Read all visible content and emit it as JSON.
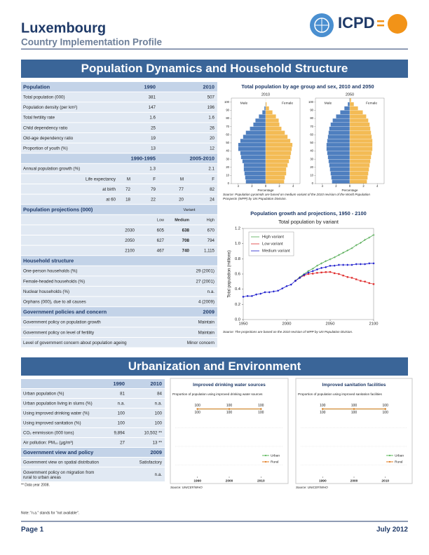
{
  "header": {
    "title": "Luxembourg",
    "subtitle": "Country Implementation Profile",
    "logo": "ICPD"
  },
  "sections": [
    "Population Dynamics and Household Structure",
    "Urbanization and Environment"
  ],
  "population_table": {
    "blocks": [
      {
        "title": "Population",
        "columns": [
          "1990",
          "2010"
        ],
        "rows": [
          [
            "Total population (000)",
            381,
            507
          ],
          [
            "Population density (per km²)",
            147,
            196
          ],
          [
            "Total fertility rate",
            1.6,
            1.6
          ],
          [
            "Child dependency ratio",
            25,
            26
          ],
          [
            "Old-age dependency ratio",
            19,
            20
          ],
          [
            "Proportion of youth (%)",
            13,
            12
          ]
        ]
      },
      {
        "columns": [
          "1990-1995",
          "2005-2010"
        ],
        "rows": [
          [
            "Annual population growth (%)",
            1.3,
            2.1
          ],
          [
            "Life expectancy",
            "M",
            "F",
            "M",
            "F"
          ],
          [
            "at birth",
            72,
            79,
            77,
            82
          ],
          [
            "at 60",
            18,
            22,
            20,
            24
          ]
        ]
      },
      {
        "title": "Population projections (000)",
        "group": "Variant",
        "columns": [
          "Low",
          "Medium",
          "High"
        ],
        "rows": [
          [
            "2030",
            605,
            638,
            670
          ],
          [
            "2050",
            627,
            708,
            794
          ],
          [
            "2100",
            467,
            740,
            "1,115"
          ]
        ]
      },
      {
        "title": "Household structure",
        "rows": [
          [
            "One-person households (%)",
            "29 (2001)"
          ],
          [
            "Female-headed households (%)",
            "27 (2001)"
          ],
          [
            "Nuclear households (%)",
            "n.a."
          ],
          [
            "Orphans (000), due to all causes",
            "4 (2009)"
          ]
        ]
      },
      {
        "title": "Government policies and concern",
        "columns": [
          "2009"
        ],
        "rows": [
          [
            "Government policy on population growth",
            "Maintain"
          ],
          [
            "Government policy on level of fertility",
            "Maintain"
          ],
          [
            "Level of government concern about population ageing",
            "Minor concern"
          ]
        ]
      }
    ]
  },
  "urban_table": {
    "blocks": [
      {
        "columns": [
          "1990",
          "2010"
        ],
        "rows": [
          [
            "Urban population (%)",
            81,
            84
          ],
          [
            "Urban population living in slums (%)",
            "n.a.",
            "n.a."
          ],
          [
            "Using improved drinking water (%)",
            100,
            100
          ],
          [
            "Using improved sanitation (%)",
            100,
            100
          ],
          [
            "CO₂ emmission (000 tons)",
            "9,894",
            "10,502 **"
          ],
          [
            "Air pollution: PM₁₀ (µg/m³)",
            27,
            "13 **"
          ]
        ]
      },
      {
        "title": "Government view and policy",
        "columns": [
          "2009"
        ],
        "rows": [
          [
            "Government view on spatial distribution",
            "Satisfactory"
          ],
          [
            "Government policy on migration from rural to urban areas",
            "n.a."
          ]
        ]
      }
    ],
    "footnote": "** Data year 2008."
  },
  "chart_data": [
    {
      "type": "pyramid",
      "title": "Total population by age group and sex, 2010 and 2050",
      "xlabel": "Percentage",
      "bins": [
        0,
        5,
        10,
        15,
        20,
        25,
        30,
        35,
        40,
        45,
        50,
        55,
        60,
        65,
        70,
        75,
        80,
        85,
        90,
        95,
        100,
        105
      ],
      "ylim": [
        0,
        105
      ],
      "yticks": [
        0,
        10,
        20,
        30,
        40,
        50,
        60,
        70,
        80,
        90,
        100
      ],
      "xlim": [
        -5,
        5
      ],
      "xticks": [
        {
          "value": -4,
          "label": "4"
        },
        {
          "value": -2,
          "label": "2"
        },
        0,
        2,
        4
      ],
      "panels": [
        {
          "title": "2010",
          "series": [
            {
              "name": "Male",
              "color": "#4f7fbf",
              "values": [
                2.9,
                3.0,
                3.1,
                3.2,
                3.2,
                3.4,
                3.6,
                3.7,
                4.0,
                4.0,
                3.7,
                3.3,
                2.9,
                2.3,
                1.8,
                1.5,
                1.0,
                0.5,
                0.2,
                0.05,
                0.01
              ]
            },
            {
              "name": "Female",
              "color": "#f3bb55",
              "values": [
                2.7,
                2.8,
                3.0,
                3.0,
                3.2,
                3.4,
                3.6,
                3.7,
                3.8,
                3.9,
                3.6,
                3.2,
                2.8,
                2.3,
                2.0,
                1.9,
                1.5,
                1.0,
                0.5,
                0.15,
                0.02
              ]
            }
          ]
        },
        {
          "title": "2050",
          "series": [
            {
              "name": "Male",
              "color": "#4f7fbf",
              "values": [
                2.6,
                2.7,
                2.8,
                2.9,
                3.0,
                3.1,
                3.2,
                3.3,
                3.4,
                3.4,
                3.3,
                3.2,
                3.1,
                3.0,
                2.8,
                2.5,
                2.0,
                1.4,
                0.8,
                0.3,
                0.08
              ]
            },
            {
              "name": "Female",
              "color": "#f3bb55",
              "values": [
                2.5,
                2.6,
                2.7,
                2.8,
                2.9,
                3.0,
                3.1,
                3.2,
                3.3,
                3.3,
                3.3,
                3.2,
                3.1,
                3.0,
                2.9,
                2.7,
                2.4,
                1.9,
                1.2,
                0.6,
                0.2
              ]
            }
          ]
        }
      ],
      "source": "Source: Population pyramids are based on medium variant of the 2010 revision of the World Population Prospects (WPP) by UN Population Division."
    },
    {
      "type": "line",
      "title": "Population growth and projections, 1950 - 2100",
      "subtitle": "Total population by variant",
      "ylabel": "Total population (millions)",
      "x": [
        1950,
        1955,
        1960,
        1965,
        1970,
        1975,
        1980,
        1985,
        1990,
        1995,
        2000,
        2005,
        2010,
        2015,
        2020,
        2025,
        2030,
        2035,
        2040,
        2045,
        2050,
        2055,
        2060,
        2065,
        2070,
        2075,
        2080,
        2085,
        2090,
        2095,
        2100
      ],
      "xlim": [
        1950,
        2100
      ],
      "xticks": [
        1950,
        2000,
        2050,
        2100
      ],
      "ylim": [
        0,
        1.2
      ],
      "yticks": [
        {
          "value": 0,
          "label": "0.0"
        },
        0.2,
        0.4,
        0.6,
        0.8,
        {
          "value": 1,
          "label": "1.0"
        },
        1.2
      ],
      "legend": "upper left",
      "series": [
        {
          "name": "High variant",
          "color": "#4ca84c",
          "marker": "plus",
          "values": [
            null,
            null,
            null,
            null,
            null,
            null,
            null,
            null,
            null,
            null,
            null,
            null,
            0.51,
            0.56,
            0.6,
            0.64,
            0.67,
            0.71,
            0.74,
            0.77,
            0.794,
            0.82,
            0.85,
            0.88,
            0.91,
            0.94,
            0.98,
            1.01,
            1.05,
            1.08,
            1.115
          ]
        },
        {
          "name": "Low variant",
          "color": "#e03030",
          "marker": "square",
          "values": [
            null,
            null,
            null,
            null,
            null,
            null,
            null,
            null,
            null,
            null,
            null,
            null,
            0.51,
            0.55,
            0.58,
            0.6,
            0.605,
            0.615,
            0.62,
            0.625,
            0.627,
            0.61,
            0.6,
            0.58,
            0.56,
            0.55,
            0.53,
            0.51,
            0.5,
            0.48,
            0.467
          ]
        },
        {
          "name": "Medium variant",
          "color": "#1a1acc",
          "marker": "diamond",
          "values": [
            0.3,
            0.31,
            0.31,
            0.33,
            0.34,
            0.36,
            0.36,
            0.37,
            0.38,
            0.41,
            0.44,
            0.46,
            0.51,
            0.55,
            0.59,
            0.62,
            0.638,
            0.66,
            0.68,
            0.69,
            0.708,
            0.71,
            0.72,
            0.72,
            0.72,
            0.72,
            0.73,
            0.73,
            0.73,
            0.74,
            0.74
          ]
        }
      ],
      "source": "Source: The projections are based on the 2010 revision of WPP by UN Population Division."
    },
    {
      "type": "line",
      "title": "Improved drinking water sources",
      "subtitle": "Proportion of population using improved drinking water sources",
      "x": [
        1990,
        2000,
        2010
      ],
      "xlim": [
        1983,
        2017
      ],
      "xticks": [
        1990,
        2000,
        2010
      ],
      "ylim": [
        0,
        110
      ],
      "legend": "lower right",
      "data_labels": true,
      "series": [
        {
          "name": "Urban",
          "color": "#5cb85c",
          "values": [
            100,
            100,
            100
          ]
        },
        {
          "name": "Rural",
          "color": "#e07b20",
          "values": [
            100,
            100,
            100
          ]
        }
      ],
      "source": "Source: UNICEF/WHO"
    },
    {
      "type": "line",
      "title": "Improved sanitation facilities",
      "subtitle": "Proportion of population using improved sanitation facilities",
      "x": [
        1990,
        2000,
        2010
      ],
      "xlim": [
        1983,
        2017
      ],
      "xticks": [
        1990,
        2000,
        2010
      ],
      "ylim": [
        0,
        110
      ],
      "legend": "lower right",
      "data_labels": true,
      "series": [
        {
          "name": "Urban",
          "color": "#5cb85c",
          "values": [
            100,
            100,
            100
          ]
        },
        {
          "name": "Rural",
          "color": "#e07b20",
          "values": [
            100,
            100,
            100
          ]
        }
      ],
      "source": "Source: UNICEF/WHO"
    }
  ],
  "note": "Note: \"n.a.\" stands for \"not available\".",
  "footer": {
    "page": "Page 1",
    "date": "July 2012"
  }
}
